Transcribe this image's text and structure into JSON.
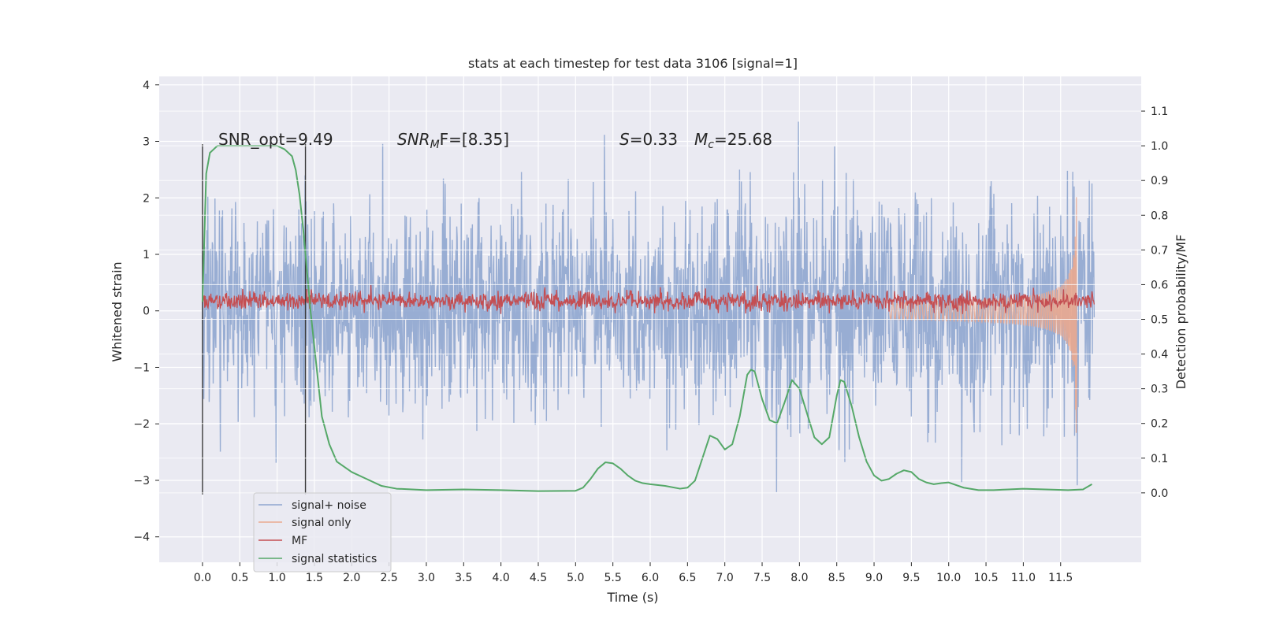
{
  "chart_data": {
    "type": "line",
    "title": "stats at each timestep for test data 3106 [signal=1]",
    "xlabel": "Time (s)",
    "ylabel_left": "Whitened strain",
    "ylabel_right": "Detection probability/MF",
    "xlim": [
      -0.58,
      12.58
    ],
    "ylim_left": [
      -4.45,
      4.15
    ],
    "ylim_right": [
      -0.2,
      1.2
    ],
    "x_ticks": [
      "0.0",
      "0.5",
      "1.0",
      "1.5",
      "2.0",
      "2.5",
      "3.0",
      "3.5",
      "4.0",
      "4.5",
      "5.0",
      "5.5",
      "6.0",
      "6.5",
      "7.0",
      "7.5",
      "8.0",
      "8.5",
      "9.0",
      "9.5",
      "10.0",
      "10.5",
      "11.0",
      "11.5"
    ],
    "y_ticks_left": [
      "4",
      "3",
      "2",
      "1",
      "0",
      "−1",
      "−2",
      "−3",
      "−4"
    ],
    "y_ticks_right": [
      "1.1",
      "1.0",
      "0.9",
      "0.8",
      "0.7",
      "0.6",
      "0.5",
      "0.4",
      "0.3",
      "0.2",
      "0.1",
      "0.0"
    ],
    "vlines": [
      0.0,
      1.38
    ],
    "annotations": {
      "snr_opt": "SNR_opt=9.49",
      "snr_mf_sym": "SNR",
      "snr_mf_sub": "M",
      "snr_mf_rest": "F=[8.35]",
      "s_sym": "S",
      "s_val": "=0.33",
      "mc_sym": "M",
      "mc_sub": "c",
      "mc_val": "=25.68"
    },
    "legend": {
      "placement": "lower-left",
      "entries": [
        {
          "label": "signal+ noise",
          "color": "#8fa6cf"
        },
        {
          "label": "signal only",
          "color": "#eaa98f"
        },
        {
          "label": "MF",
          "color": "#c44e52"
        },
        {
          "label": "signal statistics",
          "color": "#55a868"
        }
      ]
    },
    "series": [
      {
        "name": "signal statistics",
        "axis": "right",
        "color": "#55a868",
        "x": [
          0.0,
          0.05,
          0.1,
          0.15,
          0.2,
          0.3,
          0.5,
          0.8,
          1.0,
          1.1,
          1.2,
          1.25,
          1.3,
          1.35,
          1.4,
          1.45,
          1.5,
          1.55,
          1.6,
          1.7,
          1.8,
          1.9,
          2.0,
          2.2,
          2.4,
          2.6,
          3.0,
          3.5,
          4.0,
          4.5,
          5.0,
          5.1,
          5.2,
          5.3,
          5.4,
          5.5,
          5.6,
          5.7,
          5.8,
          5.9,
          6.0,
          6.2,
          6.4,
          6.5,
          6.6,
          6.7,
          6.8,
          6.9,
          7.0,
          7.1,
          7.2,
          7.3,
          7.35,
          7.4,
          7.5,
          7.6,
          7.7,
          7.8,
          7.9,
          8.0,
          8.1,
          8.2,
          8.3,
          8.4,
          8.5,
          8.55,
          8.6,
          8.7,
          8.8,
          8.9,
          9.0,
          9.1,
          9.2,
          9.3,
          9.4,
          9.5,
          9.6,
          9.7,
          9.8,
          9.9,
          10.0,
          10.2,
          10.4,
          10.6,
          10.8,
          11.0,
          11.3,
          11.6,
          11.8,
          11.92
        ],
        "y": [
          0.55,
          0.92,
          0.98,
          0.99,
          1.0,
          1.0,
          1.0,
          1.0,
          1.0,
          0.99,
          0.97,
          0.93,
          0.86,
          0.76,
          0.64,
          0.52,
          0.42,
          0.32,
          0.22,
          0.14,
          0.09,
          0.075,
          0.06,
          0.04,
          0.02,
          0.012,
          0.008,
          0.01,
          0.008,
          0.005,
          0.006,
          0.015,
          0.04,
          0.07,
          0.088,
          0.085,
          0.07,
          0.05,
          0.035,
          0.028,
          0.025,
          0.02,
          0.012,
          0.015,
          0.035,
          0.1,
          0.165,
          0.155,
          0.125,
          0.14,
          0.22,
          0.34,
          0.355,
          0.35,
          0.27,
          0.21,
          0.2,
          0.26,
          0.325,
          0.3,
          0.23,
          0.16,
          0.14,
          0.16,
          0.28,
          0.325,
          0.32,
          0.25,
          0.16,
          0.09,
          0.05,
          0.035,
          0.04,
          0.055,
          0.065,
          0.06,
          0.04,
          0.03,
          0.025,
          0.028,
          0.03,
          0.015,
          0.008,
          0.008,
          0.01,
          0.012,
          0.01,
          0.008,
          0.01,
          0.025
        ]
      }
    ]
  }
}
